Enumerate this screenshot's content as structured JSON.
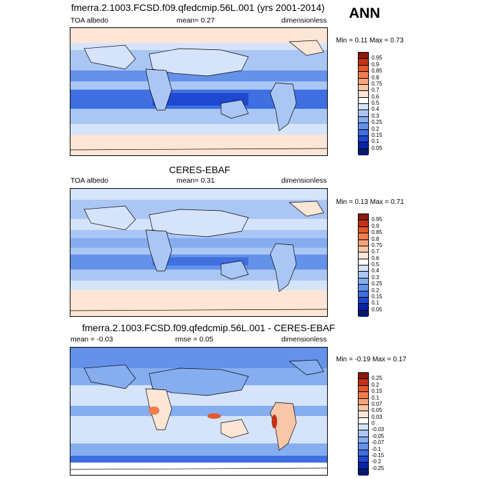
{
  "season": "ANN",
  "panels": [
    {
      "title": "fmerra.2.1003.FCSD.f09.qfedcmip.56L.001 (yrs 2001-2014)",
      "left_label": "TOA albedo",
      "center_label": "mean=   0.27",
      "right_label": "dimensionless",
      "minmax": "Min =  0.11 Max =  0.73",
      "colorbar_labels": [
        "0.95",
        "0.9",
        "0.85",
        "0.8",
        "0.75",
        "0.7",
        "0.6",
        "0.5",
        "0.4",
        "0.3",
        "0.25",
        "0.2",
        "0.15",
        "0.1",
        "0.05"
      ],
      "colorbar_colors": [
        "#8b1a0e",
        "#c33216",
        "#e25a2c",
        "#ef7d4e",
        "#f5a37a",
        "#f9c6a8",
        "#fde6d6",
        "#ffffff",
        "#d6e4fb",
        "#aac6f4",
        "#86adf0",
        "#6492ea",
        "#3f6fe0",
        "#1e48cf",
        "#0a24a6",
        "#071a6e"
      ]
    },
    {
      "title": "CERES-EBAF",
      "left_label": "TOA albedo",
      "center_label": "mean=   0.31",
      "right_label": "dimensionless",
      "minmax": "Min =  0.13 Max =  0.71",
      "colorbar_labels": [
        "0.95",
        "0.9",
        "0.85",
        "0.8",
        "0.75",
        "0.7",
        "0.6",
        "0.5",
        "0.4",
        "0.3",
        "0.25",
        "0.2",
        "0.15",
        "0.1",
        "0.05"
      ],
      "colorbar_colors": [
        "#8b1a0e",
        "#c33216",
        "#e25a2c",
        "#ef7d4e",
        "#f5a37a",
        "#f9c6a8",
        "#fde6d6",
        "#ffffff",
        "#d6e4fb",
        "#aac6f4",
        "#86adf0",
        "#6492ea",
        "#3f6fe0",
        "#1e48cf",
        "#0a24a6",
        "#071a6e"
      ]
    },
    {
      "title": "fmerra.2.1003.FCSD.f09.qfedcmip.56L.001 - CERES-EBAF",
      "left_label": "mean =  -0.03",
      "center_label": "rmse =   0.05",
      "right_label": "dimensionless",
      "minmax": "Min = -0.19 Max =  0.17",
      "colorbar_labels": [
        "0.25",
        "0.2",
        "0.15",
        "0.1",
        "0.07",
        "0.05",
        "0.03",
        "0",
        "-0.03",
        "-0.05",
        "-0.07",
        "-0.1",
        "-0.15",
        "-0.2",
        "-0.25"
      ],
      "colorbar_colors": [
        "#8b1a0e",
        "#c33216",
        "#e25a2c",
        "#ef7d4e",
        "#f5a37a",
        "#f9c6a8",
        "#fde6d6",
        "#ffffff",
        "#d6e4fb",
        "#aac6f4",
        "#86adf0",
        "#6492ea",
        "#3f6fe0",
        "#1e48cf",
        "#0a24a6",
        "#071a6e"
      ]
    }
  ]
}
